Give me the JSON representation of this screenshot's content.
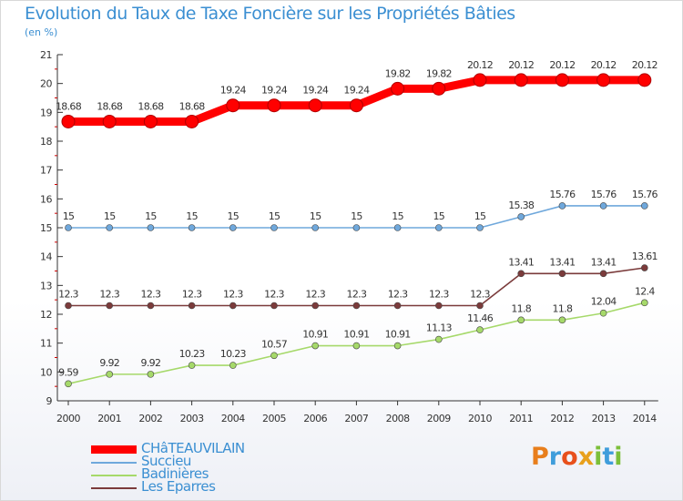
{
  "title": "Evolution du Taux de Taxe Foncière sur les Propriétés Bâties",
  "unit": "(en %)",
  "logo": {
    "text": "Proxiti",
    "letters": [
      "P",
      "r",
      "o",
      "x",
      "i",
      "t",
      "i"
    ],
    "colors": [
      "#e87e1c",
      "#3f9ddb",
      "#e8501c",
      "#e8a01c",
      "#7cbf3a",
      "#3f9ddb",
      "#7cbf3a"
    ]
  },
  "chart_data": {
    "type": "line",
    "x": [
      "2000",
      "2001",
      "2002",
      "2003",
      "2004",
      "2005",
      "2006",
      "2007",
      "2008",
      "2009",
      "2010",
      "2011",
      "2012",
      "2013",
      "2014"
    ],
    "ylim": [
      9,
      21
    ],
    "yticks": [
      "9",
      "10",
      "11",
      "12",
      "13",
      "14",
      "15",
      "16",
      "17",
      "18",
      "19",
      "20",
      "21"
    ],
    "grid": false,
    "legend_position": "bottom-left",
    "series": [
      {
        "name": "CHâTEAUVILAIN",
        "color": "#ff0000",
        "values": [
          18.68,
          18.68,
          18.68,
          18.68,
          19.24,
          19.24,
          19.24,
          19.24,
          19.82,
          19.82,
          20.12,
          20.12,
          20.12,
          20.12,
          20.12
        ],
        "labels": [
          "18.68",
          "18.68",
          "18.68",
          "18.68",
          "19.24",
          "19.24",
          "19.24",
          "19.24",
          "19.82",
          "19.82",
          "20.12",
          "20.12",
          "20.12",
          "20.12",
          "20.12"
        ]
      },
      {
        "name": "Succieu",
        "color": "#6fa8dc",
        "values": [
          15,
          15,
          15,
          15,
          15,
          15,
          15,
          15,
          15,
          15,
          15,
          15.38,
          15.76,
          15.76,
          15.76
        ],
        "labels": [
          "15",
          "15",
          "15",
          "15",
          "15",
          "15",
          "15",
          "15",
          "15",
          "15",
          "15",
          "15.38",
          "15.76",
          "15.76",
          "15.76"
        ]
      },
      {
        "name": "Badinières",
        "color": "#a6d96a",
        "values": [
          9.59,
          9.92,
          9.92,
          10.23,
          10.23,
          10.57,
          10.91,
          10.91,
          10.91,
          11.13,
          11.46,
          11.8,
          11.8,
          12.04,
          12.4
        ],
        "labels": [
          "9.59",
          "9.92",
          "9.92",
          "10.23",
          "10.23",
          "10.57",
          "10.91",
          "10.91",
          "10.91",
          "11.13",
          "11.46",
          "11.8",
          "11.8",
          "12.04",
          "12.4"
        ]
      },
      {
        "name": "Les Eparres",
        "color": "#7b3b3b",
        "values": [
          12.3,
          12.3,
          12.3,
          12.3,
          12.3,
          12.3,
          12.3,
          12.3,
          12.3,
          12.3,
          12.3,
          13.41,
          13.41,
          13.41,
          13.61
        ],
        "labels": [
          "12.3",
          "12.3",
          "12.3",
          "12.3",
          "12.3",
          "12.3",
          "12.3",
          "12.3",
          "12.3",
          "12.3",
          "12.3",
          "13.41",
          "13.41",
          "13.41",
          "13.61"
        ]
      }
    ]
  }
}
